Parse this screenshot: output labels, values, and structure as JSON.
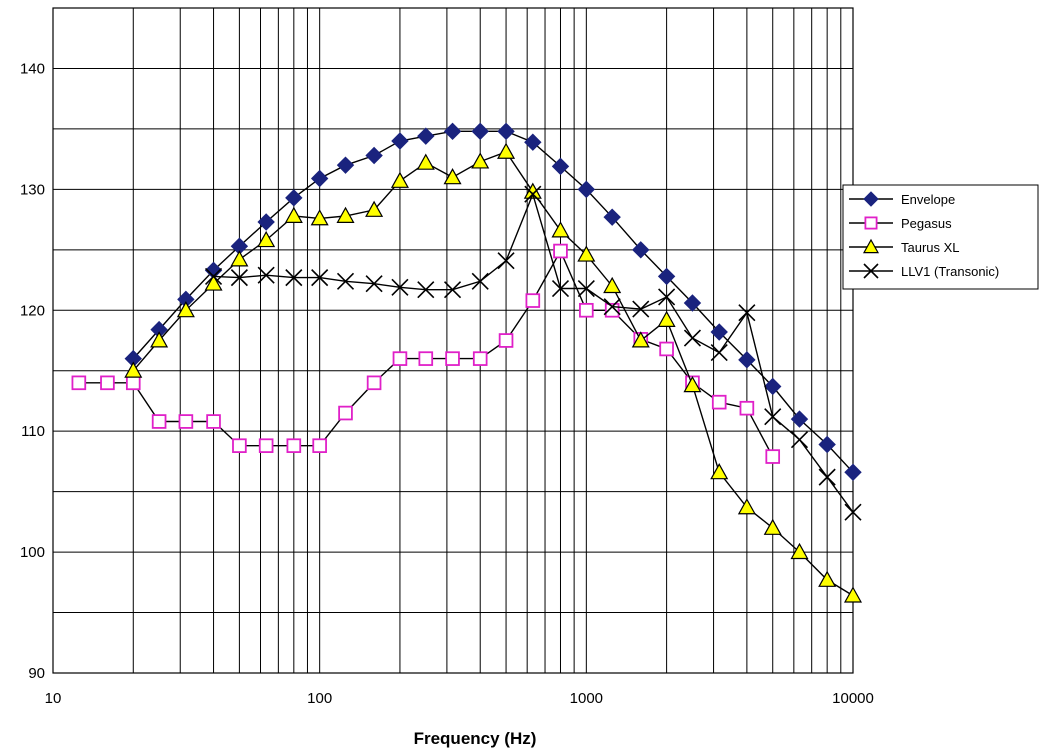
{
  "chart_data": {
    "type": "line",
    "title": "",
    "xlabel": "Frequency (Hz)",
    "ylabel": "",
    "x_scale": "log",
    "xlim": [
      10,
      10000
    ],
    "ylim": [
      90,
      145
    ],
    "grid": true,
    "legend_position": "right",
    "x_ticks": [
      "10",
      "100",
      "1000",
      "10000"
    ],
    "y_ticks": [
      "90",
      "100",
      "110",
      "120",
      "130",
      "140"
    ],
    "series": [
      {
        "name": "Envelope",
        "marker": "diamond",
        "color": "#1a237e",
        "x": [
          20,
          25,
          31.5,
          40,
          50,
          63,
          80,
          100,
          125,
          160,
          200,
          250,
          315,
          400,
          500,
          630,
          800,
          1000,
          1250,
          1600,
          2000,
          2500,
          3150,
          4000,
          5000,
          6300,
          8000,
          10000
        ],
        "y": [
          116,
          118.4,
          120.9,
          123.3,
          125.3,
          127.3,
          129.3,
          130.9,
          132,
          132.8,
          134,
          134.4,
          134.8,
          134.8,
          134.8,
          133.9,
          131.9,
          130,
          127.7,
          125,
          122.8,
          120.6,
          118.2,
          115.9,
          113.7,
          111,
          108.9,
          106.6
        ]
      },
      {
        "name": "Pegasus",
        "marker": "square-open",
        "color": "#e020c8",
        "x": [
          12.5,
          16,
          20,
          25,
          31.5,
          40,
          50,
          63,
          80,
          100,
          125,
          160,
          200,
          250,
          315,
          400,
          500,
          630,
          800,
          1000,
          1250,
          1600,
          2000,
          2500,
          3150,
          4000,
          5000
        ],
        "y": [
          114,
          114,
          114,
          110.8,
          110.8,
          110.8,
          108.8,
          108.8,
          108.8,
          108.8,
          111.5,
          114,
          116,
          116,
          116,
          116,
          117.5,
          120.8,
          124.9,
          120,
          120,
          117.6,
          116.8,
          114,
          112.4,
          111.9,
          107.9
        ]
      },
      {
        "name": "Taurus XL",
        "marker": "triangle",
        "color": "#ffff00",
        "x": [
          20,
          25,
          31.5,
          40,
          50,
          63,
          80,
          100,
          125,
          160,
          200,
          250,
          315,
          400,
          500,
          630,
          800,
          1000,
          1250,
          1600,
          2000,
          2500,
          3150,
          4000,
          5000,
          6300,
          8000,
          10000
        ],
        "y": [
          115,
          117.5,
          120,
          122.2,
          124.2,
          125.8,
          127.8,
          127.6,
          127.8,
          128.3,
          130.7,
          132.2,
          131,
          132.3,
          133.1,
          129.8,
          126.6,
          124.6,
          122,
          117.5,
          119.2,
          113.8,
          106.6,
          103.7,
          102,
          100,
          97.7,
          96.4
        ]
      },
      {
        "name": "LLV1 (Transonic)",
        "marker": "x",
        "color": "#000000",
        "x": [
          40,
          50,
          63,
          80,
          100,
          125,
          160,
          200,
          250,
          315,
          400,
          500,
          630,
          800,
          1000,
          1250,
          1600,
          2000,
          2500,
          3150,
          4000,
          5000,
          6300,
          8000,
          10000
        ],
        "y": [
          122.8,
          122.7,
          122.9,
          122.7,
          122.7,
          122.4,
          122.2,
          121.9,
          121.7,
          121.7,
          122.4,
          124.1,
          129.6,
          121.8,
          121.8,
          120.3,
          120.1,
          121.1,
          117.7,
          116.5,
          119.8,
          111.2,
          109.3,
          106.2,
          103.3
        ]
      }
    ]
  }
}
